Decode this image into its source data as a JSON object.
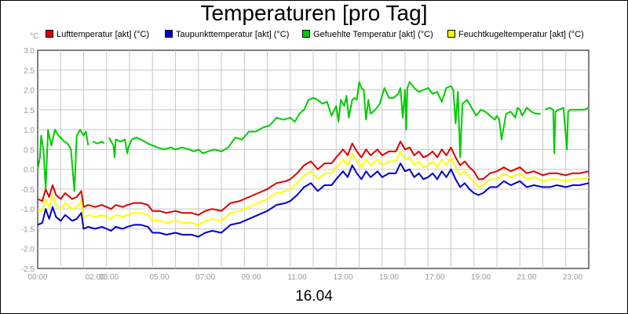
{
  "chart_data": {
    "type": "line",
    "title": "Temperaturen [pro Tag]",
    "xlabel": "16.04",
    "ylabel": "°C",
    "x_tick_labels": [
      "00:00",
      "02:00",
      "03:00",
      "05:00",
      "07:00",
      "09:00",
      "11:00",
      "13:00",
      "15:00",
      "17:00",
      "19:00",
      "21:00",
      "23:00"
    ],
    "x_tick_hours": [
      0,
      2.5,
      3.1,
      5.3,
      7.3,
      9.3,
      11.3,
      13.3,
      15.3,
      17.3,
      19.3,
      21.3,
      23.3
    ],
    "xlim": [
      0,
      24
    ],
    "ylim": [
      -2.5,
      3.0
    ],
    "y_ticks": [
      -2.5,
      -2.0,
      -1.5,
      -1.0,
      -0.5,
      0.0,
      0.5,
      1.0,
      1.5,
      2.0,
      2.5,
      3.0
    ],
    "y_tick_labels": [
      "-2.5",
      "-2.0",
      "-1.5",
      "-1.0",
      "-0.5",
      "0.0",
      "0.5",
      "1.0",
      "1.5",
      "2.0",
      "2.5",
      "3.0"
    ],
    "grid": true,
    "legend_position": "top",
    "series": [
      {
        "name": "Lufttemperatur [akt] (°C)",
        "color": "#dd0000",
        "x": [
          0,
          0.2,
          0.35,
          0.5,
          0.65,
          0.8,
          1.0,
          1.2,
          1.5,
          1.7,
          1.9,
          2.0,
          2.2,
          2.5,
          2.8,
          3.0,
          3.2,
          3.4,
          3.7,
          3.9,
          4.2,
          4.5,
          4.8,
          5.0,
          5.3,
          5.6,
          6.0,
          6.3,
          6.7,
          7.0,
          7.3,
          7.6,
          8.0,
          8.4,
          8.8,
          9.2,
          9.6,
          10.0,
          10.4,
          10.8,
          11.0,
          11.3,
          11.6,
          11.9,
          12.2,
          12.5,
          12.8,
          13.0,
          13.3,
          13.5,
          13.7,
          13.9,
          14.1,
          14.3,
          14.5,
          14.8,
          15.0,
          15.3,
          15.6,
          15.8,
          16.0,
          16.2,
          16.4,
          16.6,
          16.8,
          17.0,
          17.2,
          17.4,
          17.6,
          17.8,
          18.0,
          18.2,
          18.4,
          18.6,
          18.8,
          19.0,
          19.2,
          19.4,
          19.7,
          20.0,
          20.3,
          20.6,
          21.0,
          21.3,
          21.6,
          22.0,
          22.3,
          22.6,
          23.0,
          23.3,
          23.6,
          24.0
        ],
        "y": [
          -0.75,
          -0.8,
          -0.5,
          -0.7,
          -0.4,
          -0.65,
          -0.75,
          -0.6,
          -0.75,
          -0.7,
          -0.55,
          -0.95,
          -0.9,
          -0.95,
          -0.9,
          -0.95,
          -1.0,
          -0.9,
          -0.95,
          -0.9,
          -0.85,
          -0.85,
          -0.9,
          -1.05,
          -1.05,
          -1.1,
          -1.05,
          -1.1,
          -1.1,
          -1.15,
          -1.05,
          -1.0,
          -1.05,
          -0.85,
          -0.8,
          -0.7,
          -0.6,
          -0.5,
          -0.35,
          -0.3,
          -0.25,
          -0.1,
          0.1,
          0.2,
          0.0,
          0.15,
          0.15,
          0.3,
          0.5,
          0.35,
          0.65,
          0.45,
          0.3,
          0.5,
          0.35,
          0.5,
          0.35,
          0.45,
          0.45,
          0.7,
          0.5,
          0.55,
          0.35,
          0.45,
          0.3,
          0.35,
          0.45,
          0.3,
          0.5,
          0.35,
          0.55,
          0.3,
          0.1,
          0.2,
          0.05,
          -0.05,
          -0.25,
          -0.25,
          -0.1,
          -0.05,
          0.05,
          -0.05,
          0.05,
          -0.1,
          -0.05,
          -0.15,
          -0.1,
          -0.1,
          -0.15,
          -0.1,
          -0.1,
          -0.05
        ]
      },
      {
        "name": "Taupunkttemperatur [akt] (°C)",
        "color": "#0000cc",
        "x": [
          0,
          0.2,
          0.35,
          0.5,
          0.65,
          0.8,
          1.0,
          1.2,
          1.5,
          1.7,
          1.9,
          2.0,
          2.2,
          2.5,
          2.8,
          3.0,
          3.2,
          3.4,
          3.7,
          3.9,
          4.2,
          4.5,
          4.8,
          5.0,
          5.3,
          5.6,
          6.0,
          6.3,
          6.7,
          7.0,
          7.3,
          7.6,
          8.0,
          8.4,
          8.8,
          9.2,
          9.6,
          10.0,
          10.4,
          10.8,
          11.0,
          11.3,
          11.6,
          11.9,
          12.2,
          12.5,
          12.8,
          13.0,
          13.3,
          13.5,
          13.7,
          13.9,
          14.1,
          14.3,
          14.5,
          14.8,
          15.0,
          15.3,
          15.6,
          15.8,
          16.0,
          16.2,
          16.4,
          16.6,
          16.8,
          17.0,
          17.2,
          17.4,
          17.6,
          17.8,
          18.0,
          18.2,
          18.4,
          18.6,
          18.8,
          19.0,
          19.2,
          19.4,
          19.7,
          20.0,
          20.3,
          20.6,
          21.0,
          21.3,
          21.6,
          22.0,
          22.3,
          22.6,
          23.0,
          23.3,
          23.6,
          24.0
        ],
        "y": [
          -1.4,
          -1.35,
          -1.0,
          -1.25,
          -0.95,
          -1.2,
          -1.3,
          -1.15,
          -1.3,
          -1.25,
          -1.1,
          -1.5,
          -1.45,
          -1.5,
          -1.45,
          -1.5,
          -1.55,
          -1.45,
          -1.5,
          -1.45,
          -1.4,
          -1.4,
          -1.45,
          -1.6,
          -1.6,
          -1.65,
          -1.6,
          -1.65,
          -1.65,
          -1.7,
          -1.6,
          -1.55,
          -1.6,
          -1.4,
          -1.35,
          -1.25,
          -1.15,
          -1.05,
          -0.9,
          -0.85,
          -0.8,
          -0.65,
          -0.45,
          -0.35,
          -0.55,
          -0.4,
          -0.4,
          -0.25,
          -0.05,
          -0.2,
          0.1,
          -0.1,
          -0.25,
          -0.05,
          -0.2,
          -0.05,
          -0.2,
          -0.1,
          -0.1,
          0.15,
          -0.05,
          0.0,
          -0.2,
          -0.1,
          -0.25,
          -0.2,
          -0.1,
          -0.25,
          -0.05,
          -0.2,
          0.0,
          -0.25,
          -0.45,
          -0.35,
          -0.5,
          -0.6,
          -0.65,
          -0.6,
          -0.45,
          -0.45,
          -0.3,
          -0.4,
          -0.3,
          -0.45,
          -0.4,
          -0.45,
          -0.45,
          -0.4,
          -0.45,
          -0.4,
          -0.4,
          -0.35
        ]
      },
      {
        "name": "Gefuehlte Temperatur [akt] (°C)",
        "color": "#00cc00",
        "x": [
          0,
          0.1,
          0.15,
          0.25,
          0.35,
          0.45,
          0.5,
          0.6,
          0.75,
          0.9,
          1.0,
          1.15,
          1.3,
          1.45,
          1.6,
          1.7,
          1.85,
          2.0,
          2.1,
          2.2,
          null,
          2.4,
          2.6,
          2.8,
          2.9,
          null,
          3.1,
          3.3,
          3.35,
          3.4,
          3.6,
          3.8,
          3.9,
          3.95,
          4.1,
          4.3,
          4.5,
          4.8,
          5.0,
          5.2,
          5.5,
          5.8,
          6.0,
          6.3,
          6.6,
          6.8,
          7.0,
          7.2,
          7.4,
          7.7,
          8.0,
          8.3,
          8.6,
          8.9,
          9.2,
          9.5,
          9.8,
          10.1,
          10.4,
          10.7,
          11.0,
          11.2,
          11.4,
          11.6,
          11.8,
          12.0,
          12.2,
          12.4,
          12.6,
          12.8,
          13.0,
          13.1,
          13.2,
          13.35,
          13.45,
          13.55,
          13.7,
          13.8,
          13.9,
          14.0,
          14.1,
          14.2,
          14.3,
          14.4,
          14.5,
          14.7,
          14.9,
          15.1,
          15.3,
          15.5,
          15.7,
          15.8,
          15.9,
          16.0,
          16.05,
          16.1,
          16.2,
          16.4,
          16.6,
          16.8,
          17.0,
          17.2,
          17.4,
          17.6,
          17.8,
          18.0,
          18.1,
          18.2,
          18.3,
          18.4,
          18.5,
          18.6,
          18.7,
          18.9,
          19.1,
          19.3,
          19.5,
          19.7,
          19.9,
          20.0,
          20.1,
          20.2,
          20.4,
          20.6,
          20.8,
          20.9,
          21.0,
          21.1,
          21.2,
          21.3,
          21.5,
          21.7,
          21.9,
          null,
          22.1,
          22.3,
          22.45,
          22.5,
          22.55,
          22.7,
          22.9,
          23.05,
          23.1,
          23.2,
          23.4,
          23.6,
          23.8,
          24.0
        ],
        "y": [
          0.0,
          0.3,
          0.85,
          0.5,
          -0.5,
          1.0,
          0.85,
          0.6,
          1.0,
          0.85,
          0.8,
          0.7,
          0.65,
          0.5,
          -0.55,
          0.85,
          1.0,
          0.85,
          0.95,
          0.6,
          null,
          0.7,
          0.65,
          0.7,
          0.65,
          null,
          0.8,
          0.6,
          0.3,
          0.75,
          0.7,
          0.75,
          0.4,
          0.55,
          0.75,
          0.8,
          0.75,
          0.65,
          0.6,
          0.55,
          0.5,
          0.55,
          0.5,
          0.55,
          0.5,
          0.45,
          0.5,
          0.4,
          0.45,
          0.5,
          0.45,
          0.55,
          0.8,
          0.75,
          0.95,
          0.95,
          1.05,
          1.1,
          1.3,
          1.25,
          1.3,
          1.2,
          1.4,
          1.5,
          1.75,
          1.8,
          1.75,
          1.65,
          1.7,
          1.35,
          1.6,
          1.2,
          1.75,
          1.6,
          1.85,
          1.3,
          1.75,
          1.8,
          1.75,
          2.2,
          2.05,
          2.0,
          1.25,
          1.75,
          1.4,
          1.5,
          1.65,
          2.05,
          1.8,
          1.8,
          1.9,
          2.05,
          1.3,
          2.0,
          1.0,
          2.05,
          2.2,
          2.05,
          1.95,
          2.0,
          2.05,
          1.9,
          1.95,
          1.7,
          2.05,
          2.1,
          2.0,
          1.15,
          1.95,
          0.3,
          1.65,
          1.7,
          1.75,
          1.55,
          1.35,
          1.5,
          1.45,
          1.35,
          1.25,
          1.35,
          1.25,
          0.75,
          1.4,
          1.45,
          1.3,
          1.55,
          1.5,
          1.35,
          1.45,
          1.55,
          1.45,
          1.4,
          1.4,
          null,
          1.5,
          1.55,
          1.5,
          0.4,
          1.45,
          1.5,
          1.55,
          0.5,
          1.45,
          1.5,
          1.5,
          1.5,
          1.5,
          1.55
        ]
      },
      {
        "name": "Feuchtkugeltemperatur [akt] (°C)",
        "color": "#ffff00",
        "x": [
          0,
          0.2,
          0.35,
          0.5,
          0.65,
          0.8,
          1.0,
          1.2,
          1.5,
          1.7,
          1.9,
          2.0,
          2.2,
          2.5,
          2.8,
          3.0,
          3.2,
          3.4,
          3.7,
          3.9,
          4.2,
          4.5,
          4.8,
          5.0,
          5.3,
          5.6,
          6.0,
          6.3,
          6.7,
          7.0,
          7.3,
          7.6,
          8.0,
          8.4,
          8.8,
          9.2,
          9.6,
          10.0,
          10.4,
          10.8,
          11.0,
          11.3,
          11.6,
          11.9,
          12.2,
          12.5,
          12.8,
          13.0,
          13.3,
          13.5,
          13.7,
          13.9,
          14.1,
          14.3,
          14.5,
          14.8,
          15.0,
          15.3,
          15.6,
          15.8,
          16.0,
          16.2,
          16.4,
          16.6,
          16.8,
          17.0,
          17.2,
          17.4,
          17.6,
          17.8,
          18.0,
          18.2,
          18.4,
          18.6,
          18.8,
          19.0,
          19.2,
          19.4,
          19.7,
          20.0,
          20.3,
          20.6,
          21.0,
          21.3,
          21.6,
          22.0,
          22.3,
          22.6,
          23.0,
          23.3,
          23.6,
          24.0
        ],
        "y": [
          -1.05,
          -1.05,
          -0.75,
          -0.95,
          -0.65,
          -0.9,
          -1.0,
          -0.85,
          -1.0,
          -0.95,
          -0.8,
          -1.2,
          -1.15,
          -1.2,
          -1.15,
          -1.2,
          -1.25,
          -1.15,
          -1.2,
          -1.15,
          -1.1,
          -1.1,
          -1.15,
          -1.3,
          -1.3,
          -1.35,
          -1.3,
          -1.35,
          -1.35,
          -1.4,
          -1.3,
          -1.25,
          -1.3,
          -1.1,
          -1.05,
          -0.95,
          -0.85,
          -0.75,
          -0.6,
          -0.55,
          -0.5,
          -0.35,
          -0.15,
          -0.05,
          -0.25,
          -0.1,
          -0.1,
          0.05,
          0.25,
          0.1,
          0.4,
          0.2,
          0.05,
          0.25,
          0.1,
          0.25,
          0.1,
          0.2,
          0.2,
          0.45,
          0.25,
          0.3,
          0.1,
          0.2,
          0.05,
          0.1,
          0.2,
          0.05,
          0.25,
          0.1,
          0.3,
          0.05,
          -0.15,
          -0.05,
          -0.2,
          -0.3,
          -0.45,
          -0.4,
          -0.25,
          -0.25,
          -0.1,
          -0.2,
          -0.1,
          -0.25,
          -0.2,
          -0.3,
          -0.25,
          -0.25,
          -0.3,
          -0.25,
          -0.25,
          -0.2
        ]
      }
    ]
  }
}
